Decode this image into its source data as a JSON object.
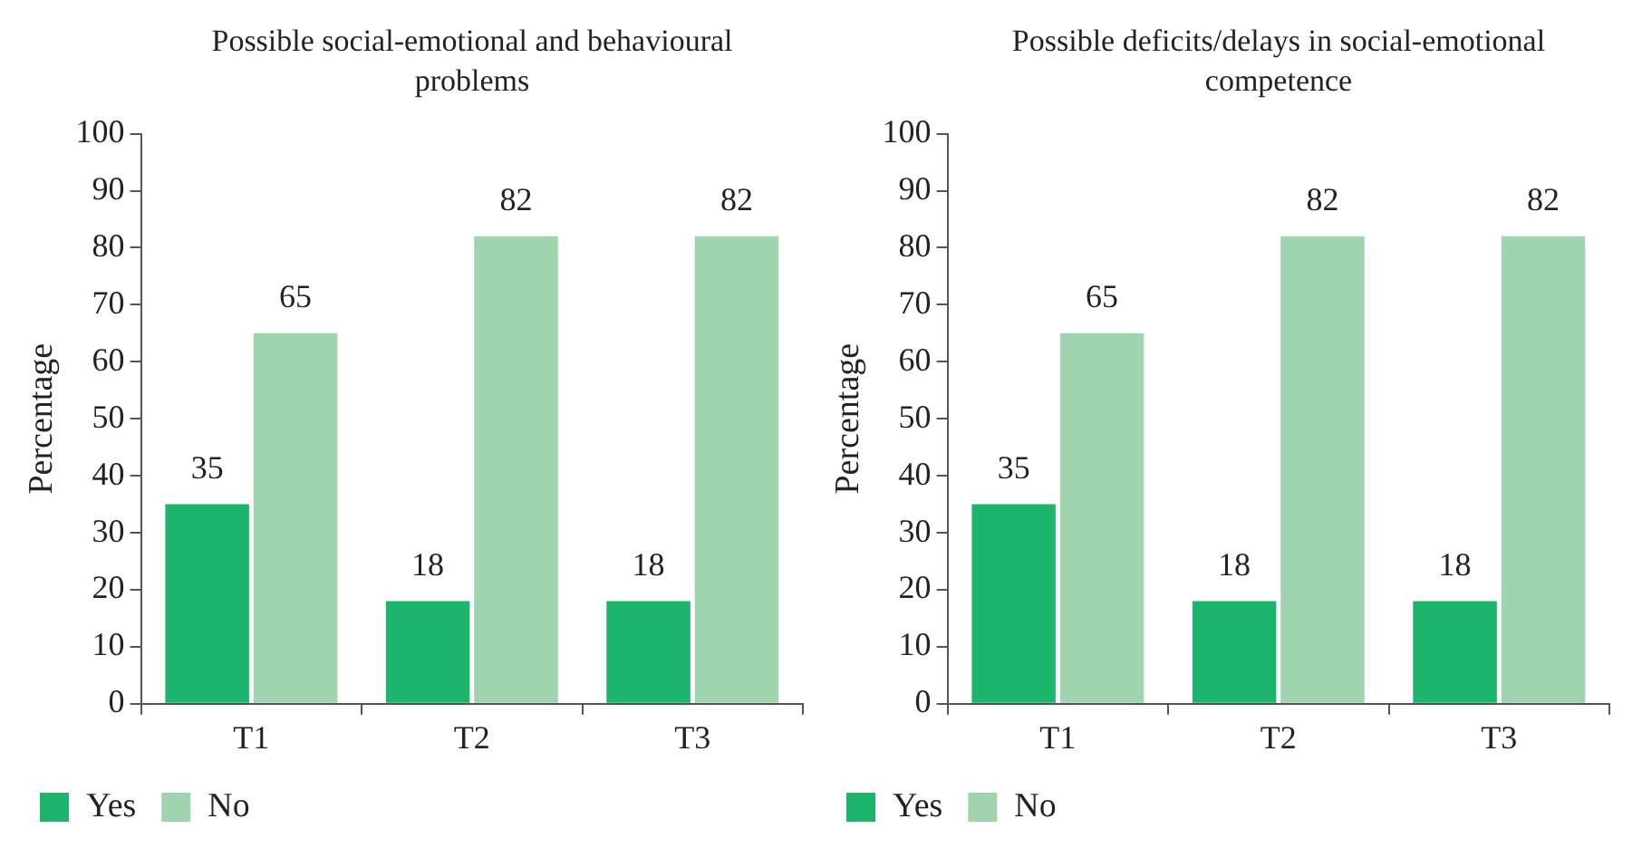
{
  "chart_data": [
    {
      "type": "bar",
      "title": "Possible social-emotional and behavioural problems",
      "ylabel": "Percentage",
      "categories": [
        "T1",
        "T2",
        "T3"
      ],
      "series": [
        {
          "name": "Yes",
          "color": "#1db46c",
          "values": [
            35,
            18,
            18
          ]
        },
        {
          "name": "No",
          "color": "#a0d4ae",
          "values": [
            65,
            82,
            82
          ]
        }
      ],
      "ylim": [
        0,
        100
      ],
      "yticks": [
        0,
        10,
        20,
        30,
        40,
        50,
        60,
        70,
        80,
        90,
        100
      ],
      "data_labels": true,
      "legend": "bottom left",
      "grid": false
    },
    {
      "type": "bar",
      "title": "Possible deficits/delays in social-emotional competence",
      "ylabel": "Percentage",
      "categories": [
        "T1",
        "T2",
        "T3"
      ],
      "series": [
        {
          "name": "Yes",
          "color": "#1db46c",
          "values": [
            35,
            18,
            18
          ]
        },
        {
          "name": "No",
          "color": "#a0d4ae",
          "values": [
            65,
            82,
            82
          ]
        }
      ],
      "ylim": [
        0,
        100
      ],
      "yticks": [
        0,
        10,
        20,
        30,
        40,
        50,
        60,
        70,
        80,
        90,
        100
      ],
      "data_labels": true,
      "legend": "bottom left",
      "grid": false
    }
  ]
}
